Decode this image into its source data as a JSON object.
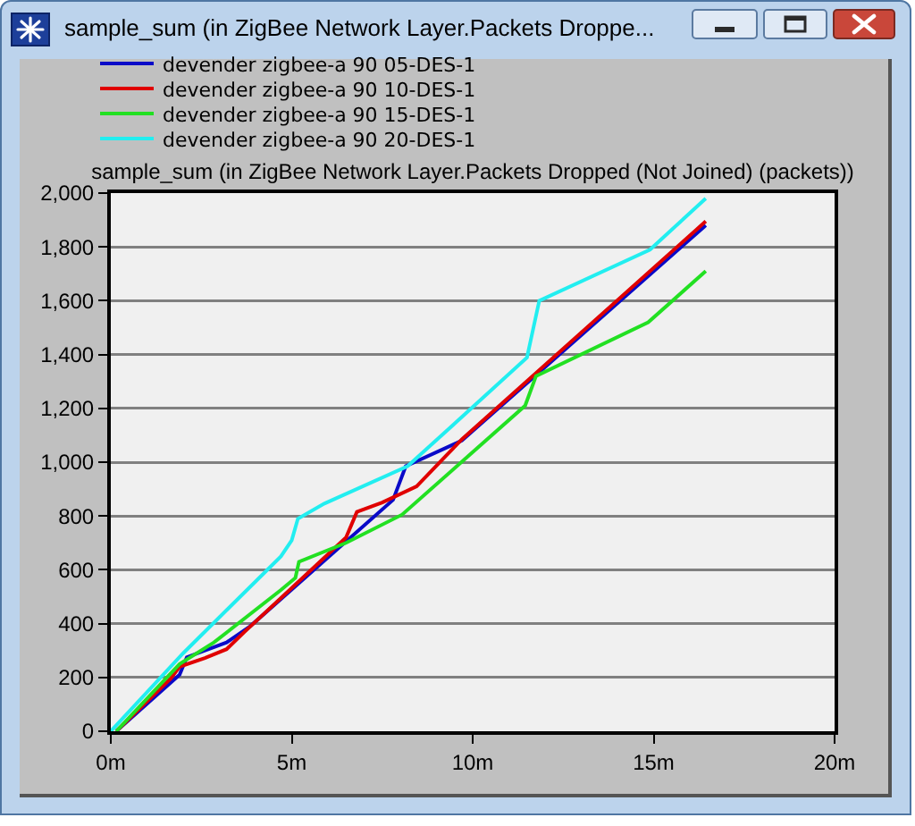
{
  "chart_data": {
    "type": "line",
    "title": "sample_sum (in ZigBee Network Layer.Packets Droppe...",
    "subtitle": "sample_sum (in ZigBee Network Layer.Packets Dropped (Not Joined) (packets))",
    "series": [
      {
        "name": "devender zigbee-a 90 05-DES-1",
        "color": "#0a0ac8",
        "x": [
          0.15,
          1.9,
          2.1,
          3.2,
          3.85,
          7.8,
          8.15,
          9.7,
          16.44
        ],
        "values": [
          0,
          210,
          275,
          330,
          390,
          860,
          985,
          1080,
          1880
        ]
      },
      {
        "name": "devender zigbee-a 90 10-DES-1",
        "color": "#e00000",
        "x": [
          0.15,
          1.65,
          1.9,
          2.6,
          3.2,
          3.7,
          6.5,
          6.8,
          7.5,
          8.45,
          9.7,
          16.44
        ],
        "values": [
          0,
          195,
          240,
          272,
          305,
          370,
          720,
          815,
          850,
          910,
          1085,
          1895
        ]
      },
      {
        "name": "devender zigbee-a 90 15-DES-1",
        "color": "#22e022",
        "x": [
          0.15,
          1.9,
          2.85,
          4.7,
          5.1,
          5.2,
          6.5,
          8.05,
          11.45,
          11.75,
          14.85,
          16.44
        ],
        "values": [
          0,
          250,
          330,
          525,
          570,
          630,
          700,
          805,
          1210,
          1320,
          1520,
          1710
        ]
      },
      {
        "name": "devender zigbee-a 90 20-DES-1",
        "color": "#22eef0",
        "x": [
          0,
          2,
          4.7,
          5.0,
          5.17,
          5.9,
          8.2,
          9.8,
          11.5,
          11.84,
          14.9,
          16.44
        ],
        "values": [
          0,
          290,
          650,
          710,
          790,
          846,
          985,
          1180,
          1389,
          1600,
          1790,
          1980
        ]
      }
    ],
    "xlim": [
      0,
      20
    ],
    "xticks": [
      {
        "value": 0,
        "label": "0m"
      },
      {
        "value": 5,
        "label": "5m"
      },
      {
        "value": 10,
        "label": "10m"
      },
      {
        "value": 15,
        "label": "15m"
      },
      {
        "value": 20,
        "label": "20m"
      }
    ],
    "ylim": [
      0,
      2000
    ],
    "yticks": [
      0,
      200,
      400,
      600,
      800,
      {
        "value": 1000,
        "label": "1,000"
      },
      {
        "value": 1200,
        "label": "1,200"
      },
      {
        "value": 1400,
        "label": "1,400"
      },
      {
        "value": 1600,
        "label": "1,600"
      },
      {
        "value": 1800,
        "label": "1,800"
      },
      {
        "value": 2000,
        "label": "2,000"
      }
    ],
    "grid": "y",
    "legend": "top left"
  }
}
